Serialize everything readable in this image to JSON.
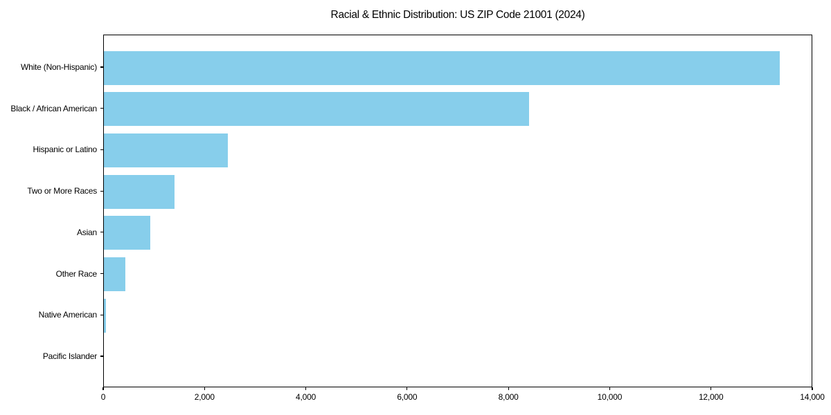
{
  "title": "Racial & Ethnic Distribution: US ZIP Code 21001 (2024)",
  "colors": {
    "bar": "#87CEEB",
    "spine": "#000000",
    "text": "#000000",
    "background": "#ffffff"
  },
  "chart_data": {
    "type": "bar",
    "orientation": "horizontal",
    "title": "Racial & Ethnic Distribution: US ZIP Code 21001 (2024)",
    "xlabel": "",
    "ylabel": "",
    "categories": [
      "White (Non-Hispanic)",
      "Black / African American",
      "Hispanic or Latino",
      "Two or More Races",
      "Asian",
      "Other Race",
      "Native American",
      "Pacific Islander"
    ],
    "values": [
      13350,
      8400,
      2450,
      1400,
      910,
      430,
      45,
      0
    ],
    "xlim": [
      0,
      14000
    ],
    "xticks": [
      0,
      2000,
      4000,
      6000,
      8000,
      10000,
      12000,
      14000
    ],
    "xtick_labels": [
      "0",
      "2,000",
      "4,000",
      "6,000",
      "8,000",
      "10,000",
      "12,000",
      "14,000"
    ],
    "grid": false,
    "legend": null,
    "bar_color": "#87CEEB"
  }
}
